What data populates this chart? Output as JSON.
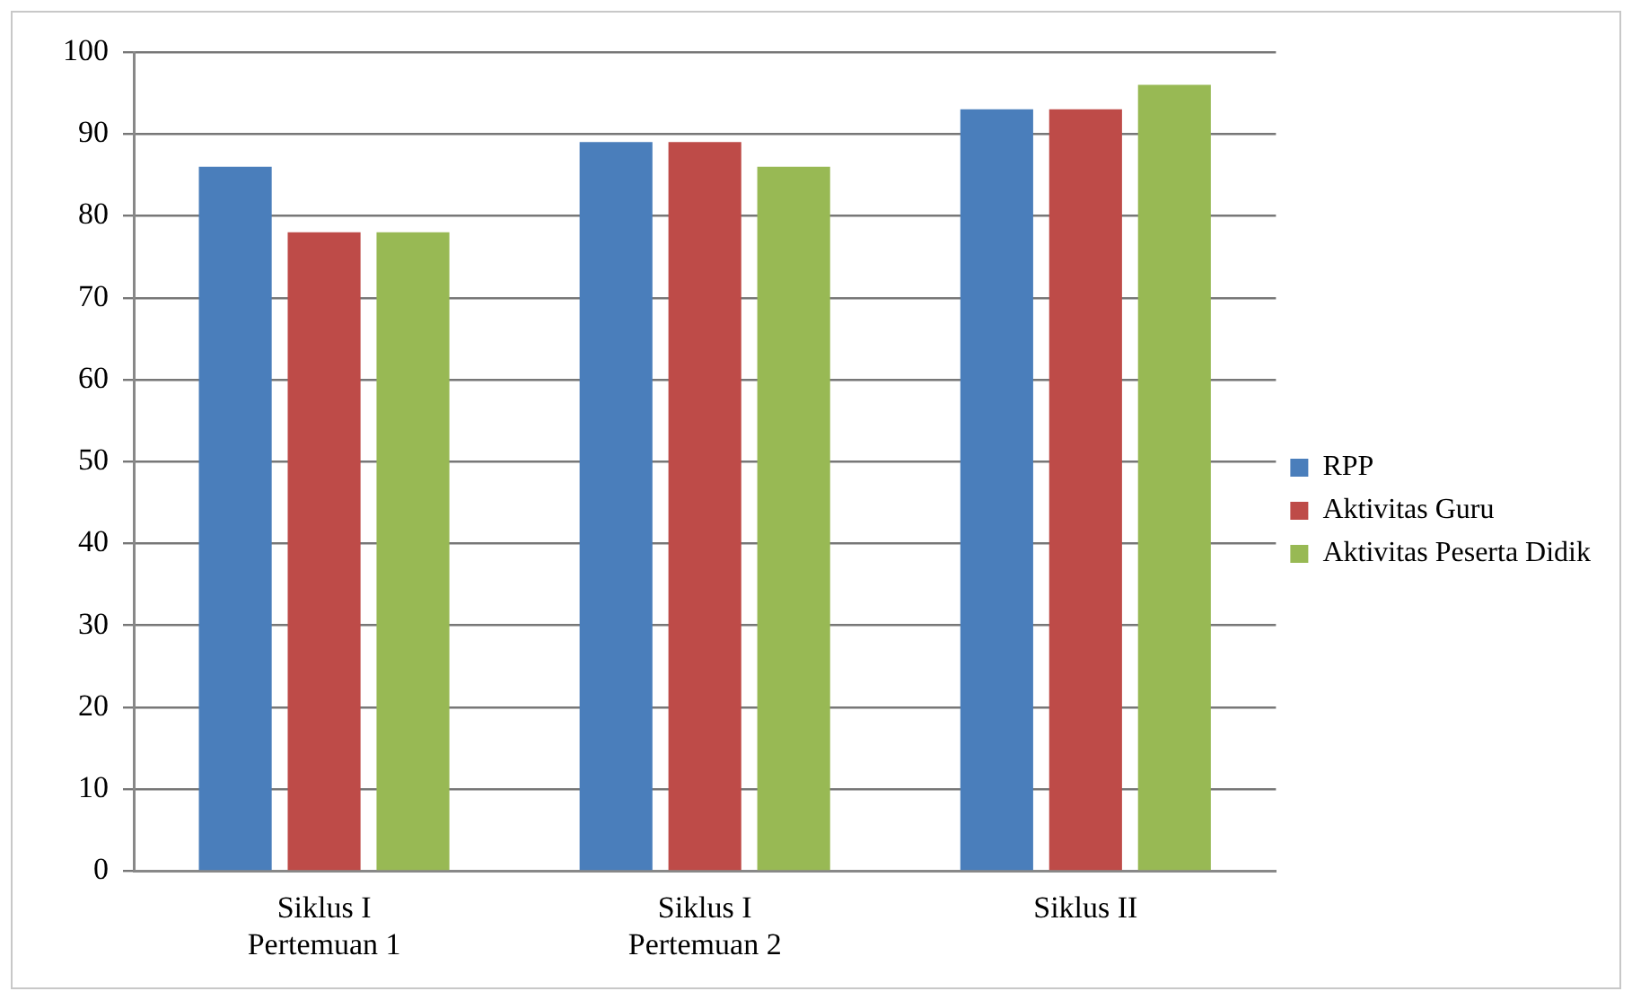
{
  "chart_data": {
    "type": "bar",
    "categories": [
      "Siklus I\nPertemuan 1",
      "Siklus I\nPertemuan 2",
      "Siklus II"
    ],
    "series": [
      {
        "name": "RPP",
        "color": "#4a7ebb",
        "values": [
          86,
          89,
          93
        ]
      },
      {
        "name": "Aktivitas Guru",
        "color": "#be4b48",
        "values": [
          78,
          89,
          93
        ]
      },
      {
        "name": "Aktivitas Peserta Didik",
        "color": "#98b954",
        "values": [
          78,
          86,
          96
        ]
      }
    ],
    "ylim": [
      0,
      100
    ],
    "yticks": [
      0,
      10,
      20,
      30,
      40,
      50,
      60,
      70,
      80,
      90,
      100
    ],
    "grid": "y",
    "legend": "right"
  }
}
